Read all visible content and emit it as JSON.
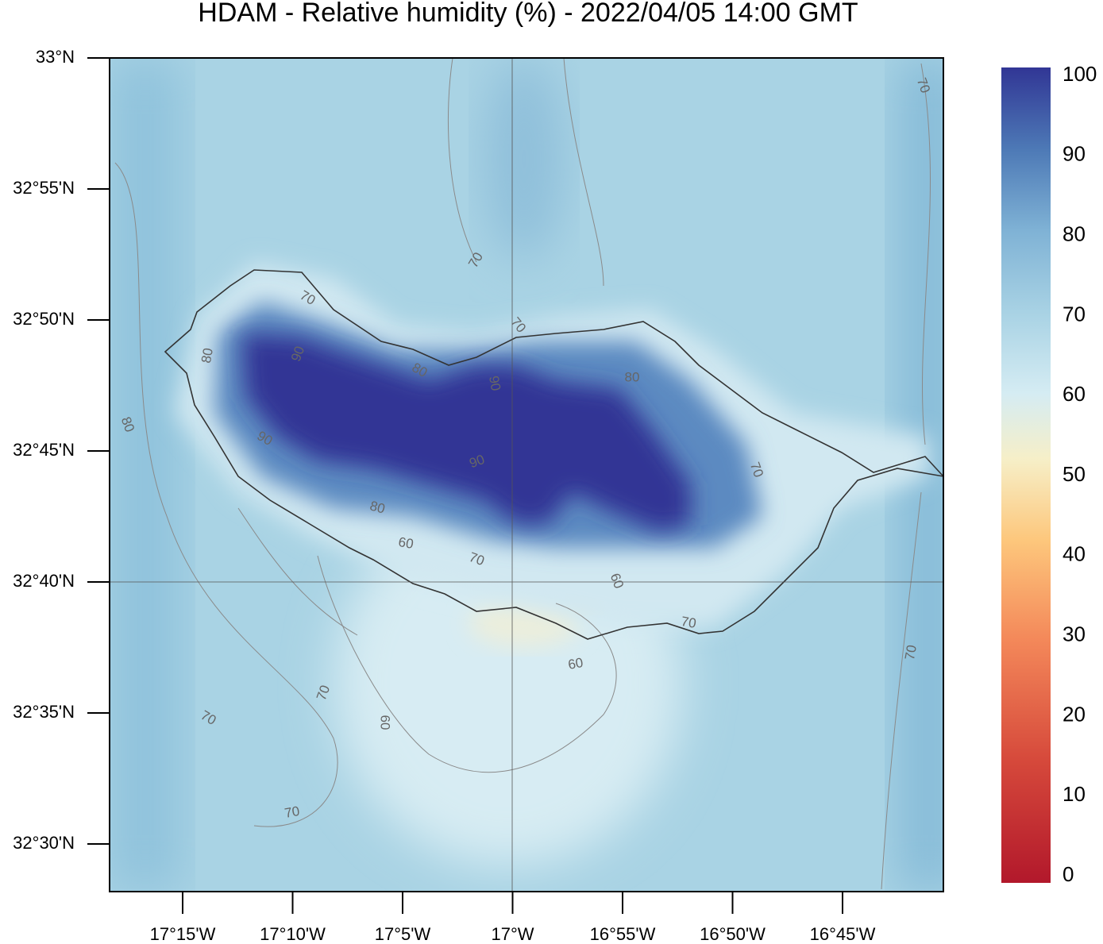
{
  "title": "HDAM - Relative humidity (%)  -  2022/04/05  14:00 GMT",
  "lat_ticks": [
    "33°N",
    "32°55'N",
    "32°50'N",
    "32°45'N",
    "32°40'N",
    "32°35'N",
    "32°30'N"
  ],
  "lon_ticks": [
    "17°15'W",
    "17°10'W",
    "17°5'W",
    "17°W",
    "16°55'W",
    "16°50'W",
    "16°45'W"
  ],
  "colorbar": {
    "ticks": [
      0,
      10,
      20,
      30,
      40,
      50,
      60,
      70,
      80,
      90,
      100
    ]
  },
  "contour_labels": [
    "70",
    "70",
    "70",
    "80",
    "90",
    "80",
    "90",
    "80",
    "90",
    "80",
    "70",
    "90",
    "80",
    "60",
    "70",
    "60",
    "70",
    "60",
    "60",
    "70",
    "70",
    "70",
    "70",
    "70"
  ]
}
